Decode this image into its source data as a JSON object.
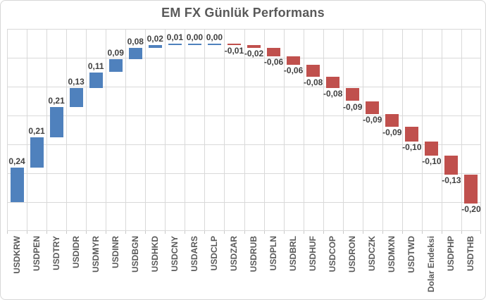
{
  "chart_data": {
    "type": "bar",
    "subtype": "waterfall",
    "title": "EM FX Günlük Performans",
    "categories": [
      "USDKRW",
      "USDPEN",
      "USDTRY",
      "USDIDR",
      "USDMYR",
      "USDINR",
      "USDBGN",
      "USDHKD",
      "USDCNY",
      "USDARS",
      "USDCLP",
      "USDZAR",
      "USDRUB",
      "USDPLN",
      "USDBRL",
      "USDHUF",
      "USDCOP",
      "USDRON",
      "USDCZK",
      "USDMXN",
      "USDTWD",
      "Dolar Endeksi",
      "USDPHP",
      "USDTHB"
    ],
    "values": [
      0.24,
      0.21,
      0.21,
      0.13,
      0.11,
      0.09,
      0.08,
      0.02,
      0.01,
      0.0,
      0.0,
      -0.01,
      -0.02,
      -0.06,
      -0.06,
      -0.08,
      -0.08,
      -0.09,
      -0.09,
      -0.09,
      -0.1,
      -0.1,
      -0.13,
      -0.2
    ],
    "value_labels": [
      "0,24",
      "0,21",
      "0,21",
      "0,13",
      "0,11",
      "0,09",
      "0,08",
      "0,02",
      "0,01",
      "0,00",
      "0,00",
      "-0,01",
      "-0,02",
      "-0,06",
      "-0,06",
      "-0,08",
      "-0,08",
      "-0,09",
      "-0,09",
      "-0,09",
      "-0,10",
      "-0,10",
      "-0,13",
      "-0,20"
    ],
    "waterfall_start": 0,
    "ylim": [
      -0.2,
      1.2
    ],
    "gridline_step": 0.2,
    "y_axis_tick_labels_visible": false,
    "legend": "none",
    "xlabel": "",
    "ylabel": "",
    "colors": {
      "positive_bar": "#4f81bd",
      "negative_bar": "#c0504d",
      "gridline": "#d9d9d9",
      "title_text": "#595959",
      "category_label_text": "#595959",
      "value_label_text": "#404040",
      "chart_border": "#d7d7d7",
      "background": "#ffffff"
    }
  }
}
